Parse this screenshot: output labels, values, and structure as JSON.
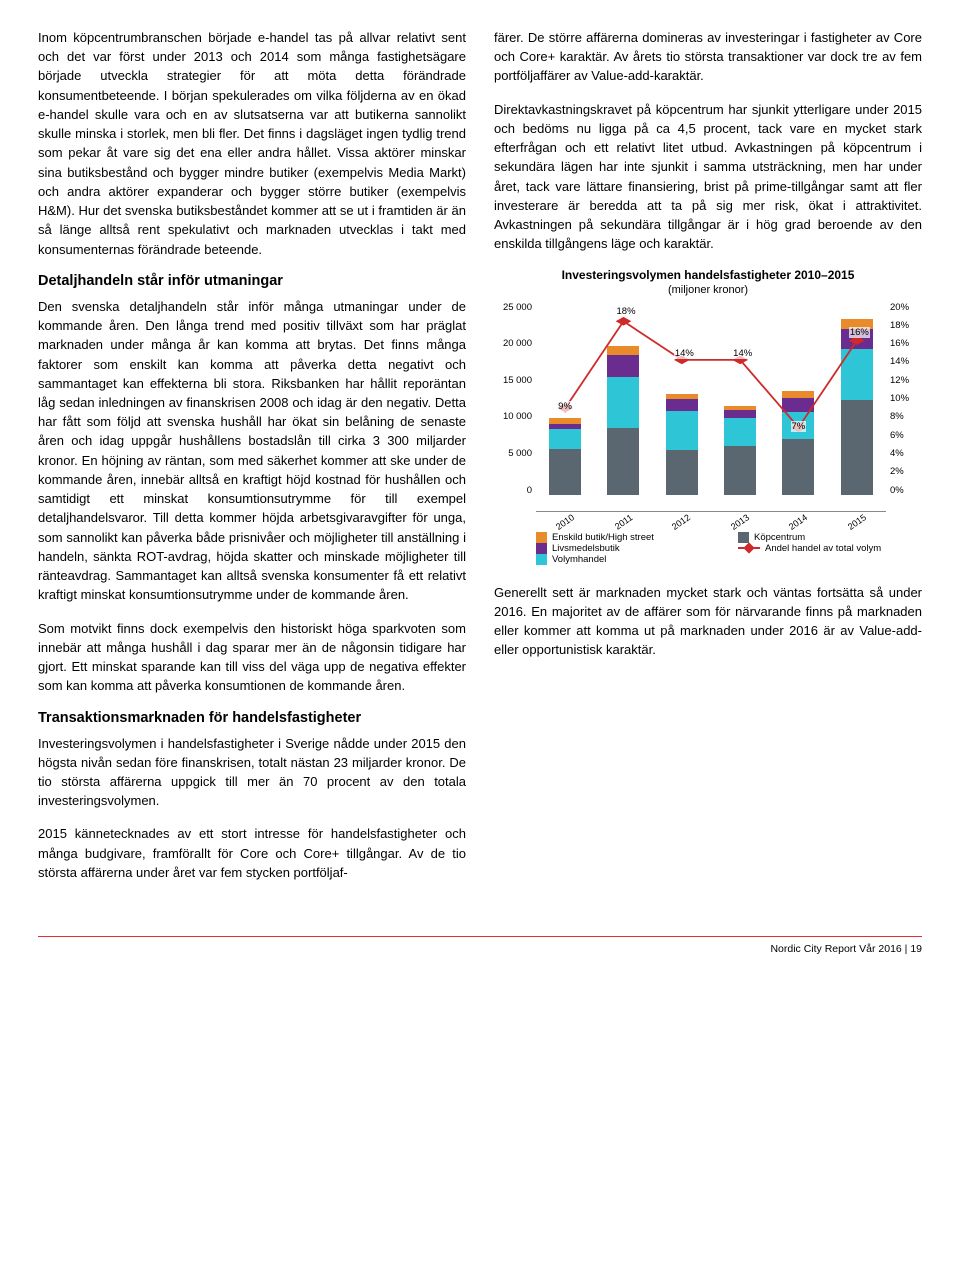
{
  "left": {
    "p1": "Inom köpcentrumbranschen började e-handel tas på allvar relativt sent och det var först under 2013 och 2014 som många fastighetsägare började utveckla strategier för att möta detta förändrade konsumentbeteende. I början spekulerades om vilka följderna av en ökad e-handel skulle vara och en av slutsatserna var att butikerna sannolikt skulle minska i storlek, men bli fler. Det finns i dagsläget ingen tydlig trend som pekar åt vare sig det ena eller andra hållet. Vissa aktörer minskar sina butiksbestånd och bygger mindre butiker (exempelvis Media Markt) och andra aktörer expanderar och bygger större butiker (exempelvis H&M). Hur det svenska butiksbeståndet kommer att se ut i framtiden är än så länge alltså rent spekulativt och marknaden utvecklas i takt med konsumenternas förändrade beteende.",
    "h1": "Detaljhandeln står inför utmaningar",
    "p2": "Den svenska detaljhandeln står inför många utmaningar under de kommande åren. Den långa trend med positiv tillväxt som har präglat marknaden under många år kan komma att brytas. Det finns många faktorer som enskilt kan komma att påverka detta negativt och sammantaget kan effekterna bli stora. Riksbanken har hållit reporäntan låg sedan inledningen av finanskrisen 2008 och idag är den negativ. Detta har fått som följd att svenska hushåll har ökat sin belåning de senaste åren och idag uppgår hushållens bostadslån till cirka 3 300 miljarder kronor. En höjning av räntan, som med säkerhet kommer att ske under de kommande åren, innebär alltså en kraftigt höjd kostnad för hushållen och samtidigt ett minskat konsumtionsutrymme för till exempel detaljhandelsvaror. Till detta kommer höjda arbetsgivaravgifter för unga, som sannolikt kan påverka både prisnivåer och möjligheter till anställning i handeln, sänkta ROT-avdrag, höjda skatter och minskade möjligheter till ränteavdrag. Sammantaget kan alltså svenska konsumenter få ett relativt kraftigt minskat konsumtionsutrymme under de kommande åren.",
    "p3": "Som motvikt finns dock exempelvis den historiskt höga sparkvoten som innebär att många hushåll i dag sparar mer än de någonsin tidigare har gjort. Ett minskat sparande kan till viss del väga upp de negativa effekter som kan komma att påverka konsumtionen de kommande åren.",
    "h2": "Transaktionsmarknaden för handelsfastigheter",
    "p4": "Investeringsvolymen i handelsfastigheter i Sverige nådde under 2015 den högsta nivån sedan före finanskrisen, totalt nästan 23 miljarder kronor. De tio största affärerna uppgick till mer än 70 procent av den totala investeringsvolymen.",
    "p5": "2015 kännetecknades av ett stort intresse för handelsfastigheter och många budgivare, framförallt för Core och Core+ tillgångar. Av de tio största affärerna under året var fem stycken portföljaf-"
  },
  "right": {
    "p1": "färer. De större affärerna domineras av investeringar i fastigheter av Core och Core+ karaktär. Av årets tio största transaktioner var dock tre av fem portföljaffärer av Value-add-karaktär.",
    "p2": "Direktavkastningskravet på köpcentrum har sjunkit ytterligare under 2015 och bedöms nu ligga på ca 4,5 procent, tack vare en mycket stark efterfrågan och ett relativt litet utbud. Avkastningen på köpcentrum i sekundära lägen har inte sjunkit i samma utsträckning, men har under året, tack vare lättare finansiering, brist på prime-tillgångar samt att fler investerare är beredda att ta på sig mer risk, ökat i attraktivitet. Avkastningen på sekundära tillgångar är i hög grad beroende av den enskilda tillgångens läge och karaktär.",
    "p3": "Generellt sett är marknaden mycket stark och väntas fortsätta så under 2016.  En majoritet av de affärer som för närvarande finns på marknaden eller kommer att komma ut på marknaden under 2016 är av Value-add- eller opportunistisk karaktär."
  },
  "chart": {
    "title": "Investeringsvolymen handelsfastigheter 2010–2015",
    "subtitle": "(miljoner kronor)",
    "categories": [
      "2010",
      "2011",
      "2012",
      "2013",
      "2014",
      "2015"
    ],
    "series": {
      "enskild": {
        "label": "Enskild butik/High street",
        "color": "#e98b2a",
        "values": [
          800,
          1100,
          700,
          500,
          900,
          1200
        ]
      },
      "livsmedel": {
        "label": "Livsmedelsbutik",
        "color": "#6a2c8f",
        "values": [
          600,
          2900,
          1500,
          1000,
          1800,
          2700
        ]
      },
      "volym": {
        "label": "Volymhandel",
        "color": "#2ec6d6",
        "values": [
          2600,
          6500,
          5000,
          3600,
          3400,
          6500
        ]
      },
      "kopcentrum": {
        "label": "Köpcentrum",
        "color": "#5a6670",
        "values": [
          5900,
          8600,
          5800,
          6300,
          7200,
          12200
        ]
      }
    },
    "stack_order": [
      "kopcentrum",
      "volym",
      "livsmedel",
      "enskild"
    ],
    "line": {
      "label": "Andel handel av total volym",
      "color": "#cf2a2a",
      "values_pct": [
        9,
        18,
        14,
        14,
        7,
        16
      ],
      "labels": [
        "9%",
        "18%",
        "14%",
        "14%",
        "7%",
        "16%"
      ]
    },
    "y_left": {
      "max": 25000,
      "ticks": [
        "25 000",
        "20 000",
        "15 000",
        "10 000",
        "5 000",
        "0"
      ]
    },
    "y_right": {
      "max": 20,
      "ticks": [
        "20%",
        "18%",
        "16%",
        "14%",
        "12%",
        "10%",
        "8%",
        "6%",
        "4%",
        "2%",
        "0%"
      ]
    }
  },
  "footer": {
    "text": "Nordic City Report Vår 2016",
    "page": "19"
  }
}
